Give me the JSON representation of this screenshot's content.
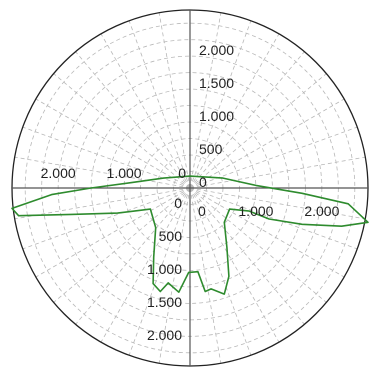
{
  "chart_data": {
    "type": "polar-curve",
    "axis_labels": {
      "up": [
        "2.000",
        "1.500",
        "1.000",
        "500",
        "0"
      ],
      "down": [
        "0",
        "500",
        "1.000",
        "1.500",
        "2.000"
      ],
      "left": [
        "2.000",
        "1.000",
        "0"
      ],
      "right": [
        "0",
        "1.000",
        "2.000"
      ]
    },
    "axis_values": {
      "up": [
        2000,
        1500,
        1000,
        500,
        0
      ],
      "down": [
        0,
        500,
        1000,
        1500,
        2000
      ],
      "left": [
        2000,
        1000,
        0
      ],
      "right": [
        0,
        1000,
        2000
      ]
    },
    "grid": true,
    "colors": {
      "curve": "#2e8b2e",
      "axis": "#555555",
      "grid": "#b8b8b8",
      "border": "#222222"
    },
    "series": [
      {
        "points": [
          [
            0,
            -180
          ],
          [
            -400,
            -150
          ],
          [
            -900,
            -80
          ],
          [
            -1500,
            0
          ],
          [
            -2100,
            100
          ],
          [
            -2700,
            310
          ],
          [
            -2600,
            420
          ],
          [
            -1800,
            400
          ],
          [
            -1100,
            380
          ],
          [
            -600,
            320
          ],
          [
            -520,
            600
          ],
          [
            -550,
            1050
          ],
          [
            -560,
            1450
          ],
          [
            -450,
            1570
          ],
          [
            -330,
            1440
          ],
          [
            -170,
            1580
          ],
          [
            -20,
            1280
          ],
          [
            120,
            1270
          ],
          [
            230,
            1570
          ],
          [
            320,
            1530
          ],
          [
            520,
            1610
          ],
          [
            590,
            1340
          ],
          [
            560,
            900
          ],
          [
            520,
            520
          ],
          [
            600,
            320
          ],
          [
            900,
            350
          ],
          [
            1200,
            470
          ],
          [
            1700,
            550
          ],
          [
            2300,
            580
          ],
          [
            2700,
            520
          ],
          [
            2400,
            240
          ],
          [
            1700,
            80
          ],
          [
            1000,
            -40
          ],
          [
            500,
            -150
          ],
          [
            0,
            -180
          ]
        ]
      }
    ]
  }
}
